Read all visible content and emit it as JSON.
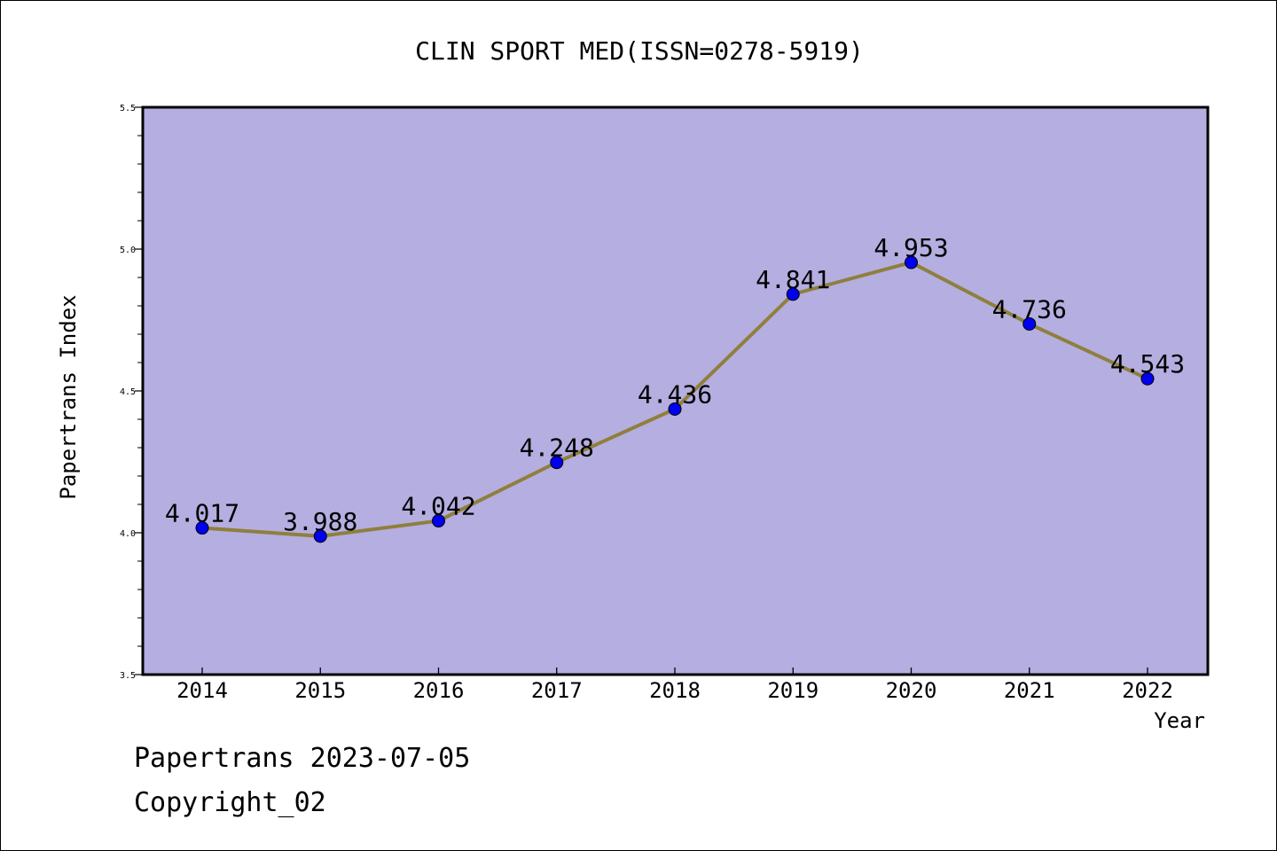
{
  "chart_data": {
    "type": "line",
    "title": "CLIN SPORT MED(ISSN=0278-5919)",
    "xlabel": "Year",
    "ylabel": "Papertrans Index",
    "x": [
      "2014",
      "2015",
      "2016",
      "2017",
      "2018",
      "2019",
      "2020",
      "2021",
      "2022"
    ],
    "y": [
      4.017,
      3.988,
      4.042,
      4.248,
      4.436,
      4.841,
      4.953,
      4.736,
      4.543
    ],
    "data_labels": [
      "4.017",
      "3.988",
      "4.042",
      "4.248",
      "4.436",
      "4.841",
      "4.953",
      "4.736",
      "4.543"
    ],
    "ylim": [
      3.5,
      5.5
    ],
    "yticks": [
      "3.5",
      "4.0",
      "4.5",
      "5.0",
      "5.5"
    ],
    "grid": false,
    "legend": "none",
    "colors": {
      "plot_background": "#b4aee1",
      "line": "#8f7f3c",
      "marker": "#0000f0"
    }
  },
  "footer": {
    "line1": "Papertrans 2023-07-05",
    "line2": "Copyright_02"
  }
}
